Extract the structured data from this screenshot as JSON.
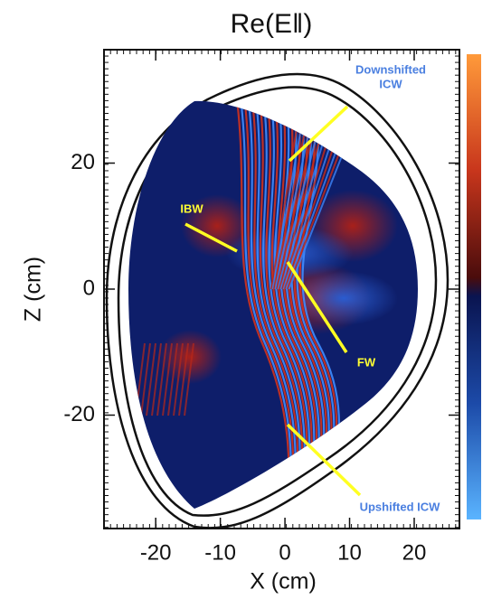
{
  "chart_data": {
    "type": "field",
    "title": "Re(E‖)",
    "x_label": "X (cm)",
    "y_label": "Z (cm)",
    "xlim": [
      -28,
      27
    ],
    "ylim": [
      -38,
      38
    ],
    "xticks": [
      -20,
      -10,
      0,
      10,
      20
    ],
    "yticks": [
      -20,
      0,
      20
    ],
    "annotations": [
      {
        "text": [
          "Downshifted",
          "ICW"
        ],
        "color": "#4a7fe0"
      },
      {
        "text": [
          "IBW"
        ],
        "color": "#ffff33"
      },
      {
        "text": [
          "FW"
        ],
        "color": "#ffff33"
      },
      {
        "text": [
          "Upshifted ICW"
        ],
        "color": "#4a7fe0"
      }
    ]
  }
}
